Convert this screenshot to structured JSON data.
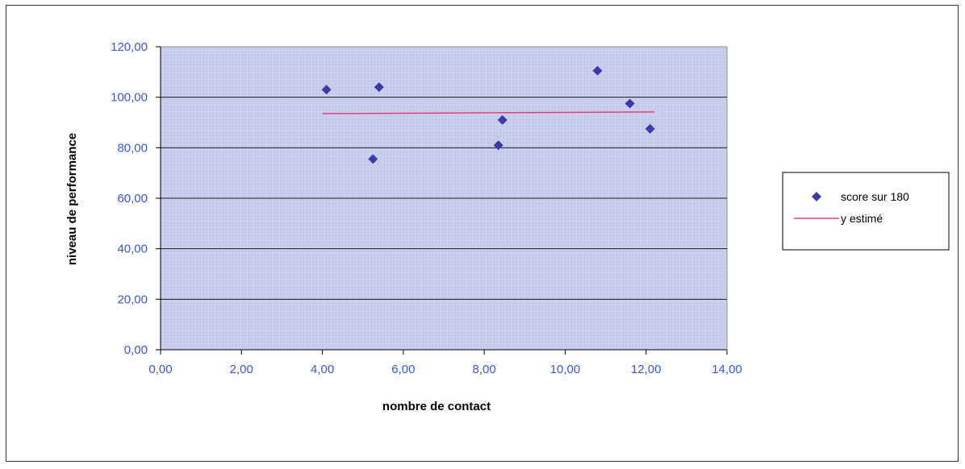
{
  "chart_data": {
    "type": "scatter",
    "xlabel": "nombre de contact",
    "ylabel": "niveau de performance",
    "xlim": [
      0,
      14
    ],
    "ylim": [
      0,
      120
    ],
    "x_ticks": [
      "0,00",
      "2,00",
      "4,00",
      "6,00",
      "8,00",
      "10,00",
      "12,00",
      "14,00"
    ],
    "y_ticks": [
      "0,00",
      "20,00",
      "40,00",
      "60,00",
      "80,00",
      "100,00",
      "120,00"
    ],
    "grid": "horizontal",
    "legend_position": "right",
    "series": [
      {
        "name": "score sur 180",
        "kind": "scatter",
        "color": "#3b3ba8",
        "points": [
          {
            "x": 4.1,
            "y": 103
          },
          {
            "x": 5.25,
            "y": 75.5
          },
          {
            "x": 5.4,
            "y": 104
          },
          {
            "x": 8.35,
            "y": 81
          },
          {
            "x": 8.45,
            "y": 91
          },
          {
            "x": 10.8,
            "y": 110.5
          },
          {
            "x": 11.6,
            "y": 97.5
          },
          {
            "x": 12.1,
            "y": 87.5
          }
        ]
      },
      {
        "name": "y estimé",
        "kind": "line",
        "color": "#e0408a",
        "points": [
          {
            "x": 4.0,
            "y": 93.5
          },
          {
            "x": 12.2,
            "y": 94.2
          }
        ]
      }
    ]
  }
}
